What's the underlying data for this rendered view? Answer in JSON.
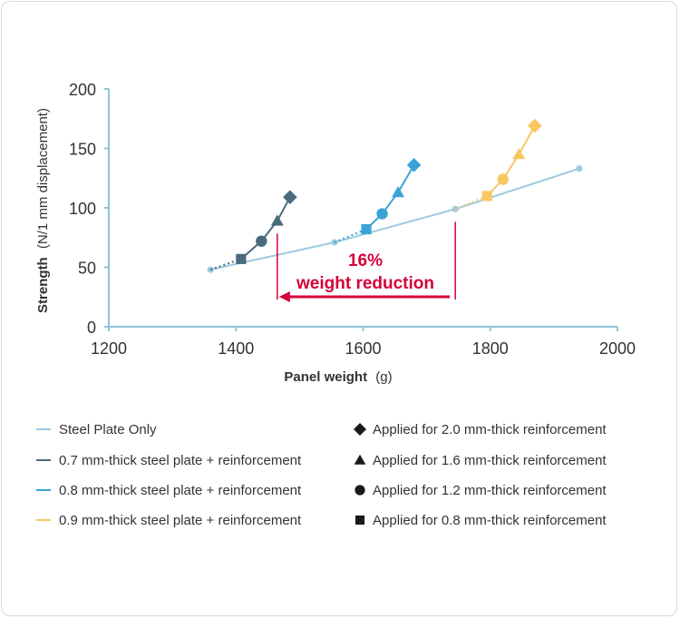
{
  "colors": {
    "steel_plate": "#9ecae1",
    "mm07": "#4a6b7e",
    "mm08": "#3aa3d6",
    "mm09": "#f8c764",
    "axis": "#8fc3dc",
    "annotation": "#d4003a",
    "marker_legend": "#1a1a1a"
  },
  "chart_data": {
    "type": "line",
    "xlabel": "Panel weight",
    "xlabel_unit": "(g)",
    "ylabel": "Strength",
    "ylabel_unit": "(N/1 mm displacement)",
    "xlim": [
      1200,
      2000
    ],
    "ylim": [
      0,
      200
    ],
    "x_ticks": [
      "1200",
      "1400",
      "1600",
      "1800",
      "2000"
    ],
    "y_ticks": [
      "0",
      "50",
      "100",
      "150",
      "200"
    ],
    "grid": false,
    "series": [
      {
        "name": "Steel Plate Only",
        "color": "#9ecae1",
        "points": [
          {
            "x": 1360,
            "y": 48
          },
          {
            "x": 1555,
            "y": 71
          },
          {
            "x": 1745,
            "y": 99
          },
          {
            "x": 1940,
            "y": 133
          }
        ]
      },
      {
        "name": "0.7 mm-thick steel plate + reinforcement",
        "color": "#4a6b7e",
        "base": {
          "x": 1360,
          "y": 48
        },
        "points": [
          {
            "x": 1408,
            "y": 57,
            "marker": "square"
          },
          {
            "x": 1440,
            "y": 72,
            "marker": "circle"
          },
          {
            "x": 1465,
            "y": 89,
            "marker": "triangle"
          },
          {
            "x": 1485,
            "y": 109,
            "marker": "diamond"
          }
        ]
      },
      {
        "name": "0.8 mm-thick steel plate + reinforcement",
        "color": "#3aa3d6",
        "base": {
          "x": 1555,
          "y": 71
        },
        "points": [
          {
            "x": 1605,
            "y": 82,
            "marker": "square"
          },
          {
            "x": 1630,
            "y": 95,
            "marker": "circle"
          },
          {
            "x": 1655,
            "y": 113,
            "marker": "triangle"
          },
          {
            "x": 1680,
            "y": 136,
            "marker": "diamond"
          }
        ]
      },
      {
        "name": "0.9 mm-thick steel plate + reinforcement",
        "color": "#f8c764",
        "base": {
          "x": 1745,
          "y": 99
        },
        "points": [
          {
            "x": 1795,
            "y": 110,
            "marker": "square"
          },
          {
            "x": 1820,
            "y": 124,
            "marker": "circle"
          },
          {
            "x": 1845,
            "y": 145,
            "marker": "triangle"
          },
          {
            "x": 1870,
            "y": 169,
            "marker": "diamond"
          }
        ]
      }
    ],
    "annotation": {
      "line1": "16%",
      "line2": "weight reduction",
      "from_x": 1745,
      "to_x": 1465
    }
  },
  "legend": {
    "lines": [
      {
        "label": "Steel Plate Only",
        "color": "#9ecae1"
      },
      {
        "label": "0.7 mm-thick steel plate + reinforcement",
        "color": "#4a6b7e"
      },
      {
        "label": "0.8 mm-thick steel plate + reinforcement",
        "color": "#3aa3d6"
      },
      {
        "label": "0.9 mm-thick steel plate + reinforcement",
        "color": "#f8c764"
      }
    ],
    "markers": [
      {
        "label": "Applied for 2.0 mm-thick reinforcement",
        "marker": "diamond"
      },
      {
        "label": "Applied for 1.6 mm-thick reinforcement",
        "marker": "triangle"
      },
      {
        "label": "Applied for 1.2 mm-thick reinforcement",
        "marker": "circle"
      },
      {
        "label": "Applied for 0.8 mm-thick reinforcement",
        "marker": "square"
      }
    ]
  }
}
